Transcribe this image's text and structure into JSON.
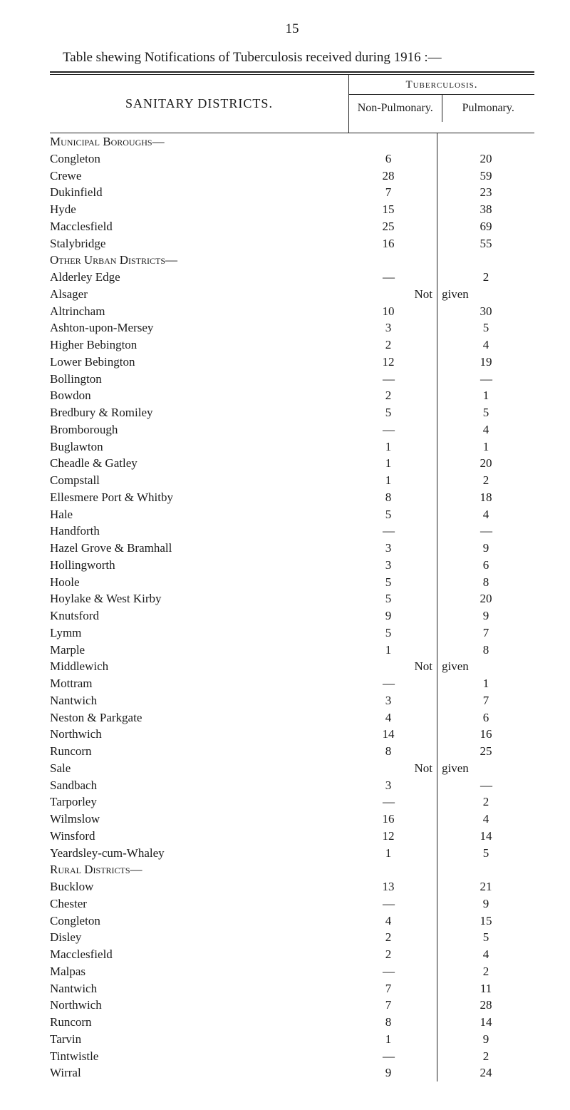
{
  "page_number": "15",
  "title": "Table shewing Notifications of Tuberculosis received during 1916 :—",
  "header": {
    "left": "SANITARY DISTRICTS.",
    "tb": "Tuberculosis.",
    "col1": "Non-Pulmonary.",
    "col2": "Pulmonary."
  },
  "groups": [
    {
      "title": "Municipal Boroughs—",
      "rows": [
        {
          "name": "Congleton",
          "c1": "6",
          "c2": "20"
        },
        {
          "name": "Crewe",
          "c1": "28",
          "c2": "59"
        },
        {
          "name": "Dukinfield",
          "c1": "7",
          "c2": "23"
        },
        {
          "name": "Hyde",
          "c1": "15",
          "c2": "38"
        },
        {
          "name": "Macclesfield",
          "c1": "25",
          "c2": "69"
        },
        {
          "name": "Stalybridge",
          "c1": "16",
          "c2": "55"
        }
      ]
    },
    {
      "title": "Other Urban Districts—",
      "rows": [
        {
          "name": "Alderley Edge",
          "c1": "—",
          "c2": "2"
        },
        {
          "name": "Alsager",
          "notgiven": "Not given"
        },
        {
          "name": "Altrincham",
          "c1": "10",
          "c2": "30"
        },
        {
          "name": "Ashton-upon-Mersey",
          "c1": "3",
          "c2": "5"
        },
        {
          "name": "Higher Bebington",
          "c1": "2",
          "c2": "4"
        },
        {
          "name": "Lower Bebington",
          "c1": "12",
          "c2": "19"
        },
        {
          "name": "Bollington",
          "c1": "—",
          "c2": "—"
        },
        {
          "name": "Bowdon",
          "c1": "2",
          "c2": "1"
        },
        {
          "name": "Bredbury & Romiley",
          "c1": "5",
          "c2": "5"
        },
        {
          "name": "Bromborough",
          "c1": "—",
          "c2": "4"
        },
        {
          "name": "Buglawton",
          "c1": "1",
          "c2": "1"
        },
        {
          "name": "Cheadle & Gatley",
          "c1": "1",
          "c2": "20"
        },
        {
          "name": "Compstall",
          "c1": "1",
          "c2": "2"
        },
        {
          "name": "Ellesmere Port & Whitby",
          "c1": "8",
          "c2": "18"
        },
        {
          "name": "Hale",
          "c1": "5",
          "c2": "4"
        },
        {
          "name": "Handforth",
          "c1": "—",
          "c2": "—"
        },
        {
          "name": "Hazel Grove & Bramhall",
          "c1": "3",
          "c2": "9"
        },
        {
          "name": "Hollingworth",
          "c1": "3",
          "c2": "6"
        },
        {
          "name": "Hoole",
          "c1": "5",
          "c2": "8"
        },
        {
          "name": "Hoylake & West Kirby",
          "c1": "5",
          "c2": "20"
        },
        {
          "name": "Knutsford",
          "c1": "9",
          "c2": "9"
        },
        {
          "name": "Lymm",
          "c1": "5",
          "c2": "7"
        },
        {
          "name": "Marple",
          "c1": "1",
          "c2": "8"
        },
        {
          "name": "Middlewich",
          "notgiven": "Not given"
        },
        {
          "name": "Mottram",
          "c1": "—",
          "c2": "1"
        },
        {
          "name": "Nantwich",
          "c1": "3",
          "c2": "7"
        },
        {
          "name": "Neston & Parkgate",
          "c1": "4",
          "c2": "6"
        },
        {
          "name": "Northwich",
          "c1": "14",
          "c2": "16"
        },
        {
          "name": "Runcorn",
          "c1": "8",
          "c2": "25"
        },
        {
          "name": "Sale",
          "notgiven": "Not given"
        },
        {
          "name": "Sandbach",
          "c1": "3",
          "c2": "—"
        },
        {
          "name": "Tarporley",
          "c1": "—",
          "c2": "2"
        },
        {
          "name": "Wilmslow",
          "c1": "16",
          "c2": "4"
        },
        {
          "name": "Winsford",
          "c1": "12",
          "c2": "14"
        },
        {
          "name": "Yeardsley-cum-Whaley",
          "c1": "1",
          "c2": "5"
        }
      ]
    },
    {
      "title": "Rural Districts—",
      "rows": [
        {
          "name": "Bucklow",
          "c1": "13",
          "c2": "21"
        },
        {
          "name": "Chester",
          "c1": "—",
          "c2": "9"
        },
        {
          "name": "Congleton",
          "c1": "4",
          "c2": "15"
        },
        {
          "name": "Disley",
          "c1": "2",
          "c2": "5"
        },
        {
          "name": "Macclesfield",
          "c1": "2",
          "c2": "4"
        },
        {
          "name": "Malpas",
          "c1": "—",
          "c2": "2"
        },
        {
          "name": "Nantwich",
          "c1": "7",
          "c2": "11"
        },
        {
          "name": "Northwich",
          "c1": "7",
          "c2": "28"
        },
        {
          "name": "Runcorn",
          "c1": "8",
          "c2": "14"
        },
        {
          "name": "Tarvin",
          "c1": "1",
          "c2": "9"
        },
        {
          "name": "Tintwistle",
          "c1": "—",
          "c2": "2"
        },
        {
          "name": "Wirral",
          "c1": "9",
          "c2": "24"
        }
      ]
    }
  ]
}
